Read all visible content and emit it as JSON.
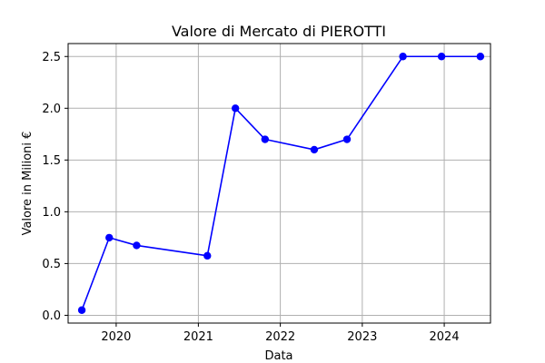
{
  "chart_data": {
    "type": "line",
    "title": "Valore di Mercato di PIEROTTI",
    "xlabel": "Data",
    "ylabel": "Valore in Milioni €",
    "x_axis_kind": "date",
    "xlim": [
      "2019-06-01",
      "2024-07-25"
    ],
    "ylim": [
      -0.075,
      2.625
    ],
    "x_ticks": [
      {
        "value": "2020-01-01",
        "label": "2020"
      },
      {
        "value": "2021-01-01",
        "label": "2021"
      },
      {
        "value": "2022-01-01",
        "label": "2022"
      },
      {
        "value": "2023-01-01",
        "label": "2023"
      },
      {
        "value": "2024-01-01",
        "label": "2024"
      }
    ],
    "y_ticks": [
      {
        "value": 0.0,
        "label": "0.0"
      },
      {
        "value": 0.5,
        "label": "0.5"
      },
      {
        "value": 1.0,
        "label": "1.0"
      },
      {
        "value": 1.5,
        "label": "1.5"
      },
      {
        "value": 2.0,
        "label": "2.0"
      },
      {
        "value": 2.5,
        "label": "2.5"
      }
    ],
    "grid": true,
    "series": [
      {
        "color": "#0000ff",
        "marker": "circle",
        "points": [
          {
            "x": "2019-08-01",
            "y": 0.05
          },
          {
            "x": "2019-12-01",
            "y": 0.75
          },
          {
            "x": "2020-04-01",
            "y": 0.675
          },
          {
            "x": "2021-02-10",
            "y": 0.575
          },
          {
            "x": "2021-06-15",
            "y": 2.0
          },
          {
            "x": "2021-10-25",
            "y": 1.7
          },
          {
            "x": "2022-06-01",
            "y": 1.6
          },
          {
            "x": "2022-10-25",
            "y": 1.7
          },
          {
            "x": "2023-07-01",
            "y": 2.5
          },
          {
            "x": "2023-12-20",
            "y": 2.5
          },
          {
            "x": "2024-06-10",
            "y": 2.5
          }
        ]
      }
    ]
  }
}
